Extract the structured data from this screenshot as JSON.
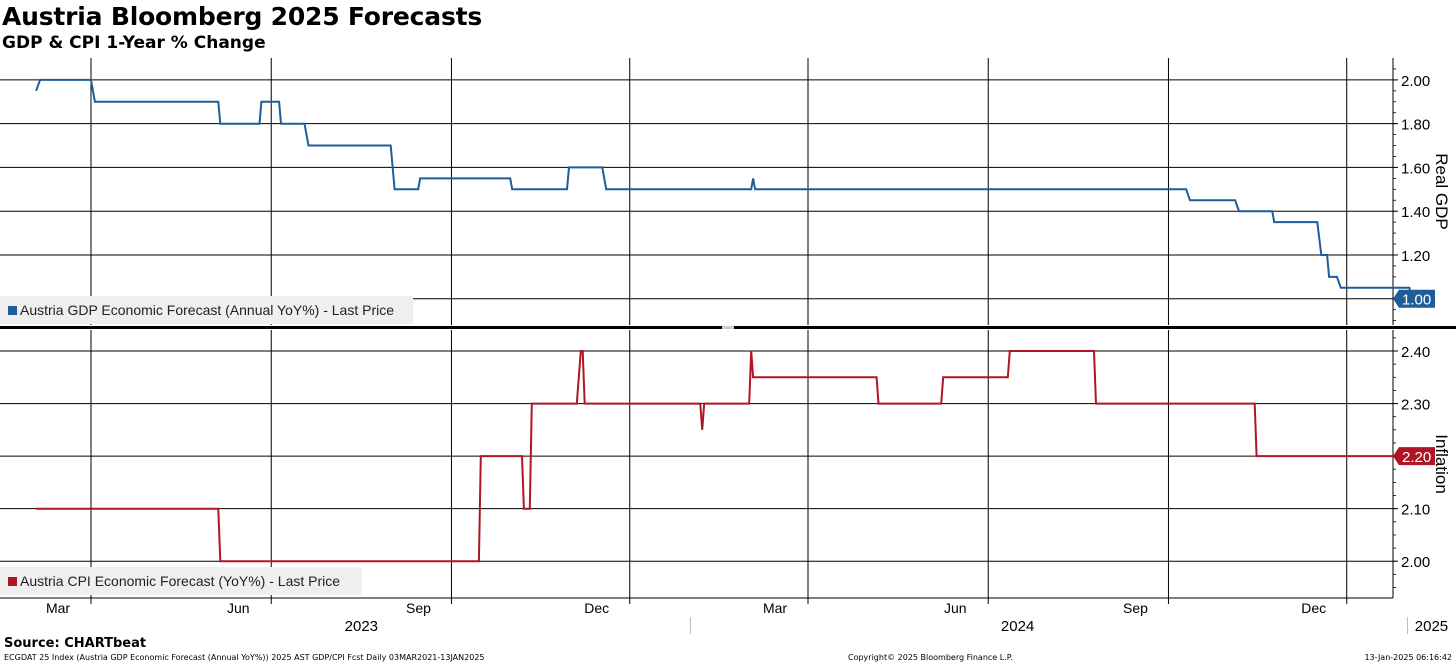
{
  "title": "Austria Bloomberg 2025 Forecasts",
  "subtitle": "GDP & CPI 1-Year % Change",
  "source": "Source: CHARTbeat",
  "footer": {
    "left": "ECGDAT 25 Index (Austria GDP Economic Forecast (Annual YoY%)) 2025 AST GDP/CPI Fcst  Daily 03MAR2021-13JAN2025",
    "center": "Copyright© 2025 Bloomberg Finance L.P.",
    "right": "13-Jan-2025 06:16:42"
  },
  "x_axis": {
    "month_ticks": [
      "Mar",
      "Jun",
      "Sep",
      "Dec",
      "Mar",
      "Jun",
      "Sep",
      "Dec"
    ],
    "years": [
      "2023",
      "2024",
      "2025"
    ]
  },
  "colors": {
    "gdp": "#1f5d99",
    "cpi": "#b01525",
    "grid": "#000000"
  },
  "chart_data": [
    {
      "type": "line",
      "name": "gdp-panel",
      "ylabel": "Real GDP",
      "ylim": [
        0.88,
        2.1
      ],
      "yticks": [
        2.0,
        1.8,
        1.6,
        1.4,
        1.2,
        1.0
      ],
      "ytick_labels": [
        "2.00",
        "1.80",
        "1.60",
        "1.40",
        "1.20"
      ],
      "legend": "Austria GDP Economic Forecast (Annual YoY%) - Last Price",
      "last_value": "1.00",
      "series": [
        {
          "name": "Austria GDP Economic Forecast (Annual YoY%) - Last Price",
          "points": [
            [
              "2023-02-01",
              1.95
            ],
            [
              "2023-02-03",
              2.0
            ],
            [
              "2023-03-01",
              2.0
            ],
            [
              "2023-03-03",
              1.9
            ],
            [
              "2023-05-05",
              1.9
            ],
            [
              "2023-05-06",
              1.8
            ],
            [
              "2023-05-26",
              1.8
            ],
            [
              "2023-05-27",
              1.9
            ],
            [
              "2023-06-05",
              1.9
            ],
            [
              "2023-06-06",
              1.8
            ],
            [
              "2023-06-18",
              1.8
            ],
            [
              "2023-06-20",
              1.7
            ],
            [
              "2023-08-01",
              1.7
            ],
            [
              "2023-08-03",
              1.5
            ],
            [
              "2023-08-15",
              1.5
            ],
            [
              "2023-08-16",
              1.55
            ],
            [
              "2023-10-01",
              1.55
            ],
            [
              "2023-10-02",
              1.5
            ],
            [
              "2023-10-30",
              1.5
            ],
            [
              "2023-10-31",
              1.6
            ],
            [
              "2023-11-17",
              1.6
            ],
            [
              "2023-11-19",
              1.5
            ],
            [
              "2024-02-01",
              1.5
            ],
            [
              "2024-02-02",
              1.55
            ],
            [
              "2024-02-03",
              1.5
            ],
            [
              "2024-09-10",
              1.5
            ],
            [
              "2024-09-12",
              1.45
            ],
            [
              "2024-10-05",
              1.45
            ],
            [
              "2024-10-07",
              1.4
            ],
            [
              "2024-10-24",
              1.4
            ],
            [
              "2024-10-25",
              1.35
            ],
            [
              "2024-11-16",
              1.35
            ],
            [
              "2024-11-18",
              1.2
            ],
            [
              "2024-11-21",
              1.2
            ],
            [
              "2024-11-22",
              1.1
            ],
            [
              "2024-11-26",
              1.1
            ],
            [
              "2024-11-28",
              1.05
            ],
            [
              "2025-01-02",
              1.05
            ],
            [
              "2025-01-03",
              1.0
            ],
            [
              "2025-01-13",
              1.0
            ]
          ]
        }
      ]
    },
    {
      "type": "line",
      "name": "cpi-panel",
      "ylabel": "Inflation",
      "ylim": [
        1.93,
        2.44
      ],
      "yticks": [
        2.4,
        2.3,
        2.2,
        2.1,
        2.0
      ],
      "ytick_labels": [
        "2.40",
        "2.30",
        "2.10",
        "2.00"
      ],
      "legend": "Austria CPI Economic Forecast (YoY%) - Last Price",
      "last_value": "2.20",
      "series": [
        {
          "name": "Austria CPI Economic Forecast (YoY%) - Last Price",
          "points": [
            [
              "2023-02-01",
              2.1
            ],
            [
              "2023-05-05",
              2.1
            ],
            [
              "2023-05-06",
              2.0
            ],
            [
              "2023-09-15",
              2.0
            ],
            [
              "2023-09-16",
              2.2
            ],
            [
              "2023-10-07",
              2.2
            ],
            [
              "2023-10-08",
              2.1
            ],
            [
              "2023-10-11",
              2.1
            ],
            [
              "2023-10-12",
              2.3
            ],
            [
              "2023-11-04",
              2.3
            ],
            [
              "2023-11-06",
              2.4
            ],
            [
              "2023-11-07",
              2.4
            ],
            [
              "2023-11-08",
              2.3
            ],
            [
              "2024-01-06",
              2.3
            ],
            [
              "2024-01-07",
              2.25
            ],
            [
              "2024-01-08",
              2.3
            ],
            [
              "2024-01-31",
              2.3
            ],
            [
              "2024-02-01",
              2.4
            ],
            [
              "2024-02-02",
              2.35
            ],
            [
              "2024-04-05",
              2.35
            ],
            [
              "2024-04-06",
              2.3
            ],
            [
              "2024-05-08",
              2.3
            ],
            [
              "2024-05-09",
              2.35
            ],
            [
              "2024-06-11",
              2.35
            ],
            [
              "2024-06-12",
              2.4
            ],
            [
              "2024-07-25",
              2.4
            ],
            [
              "2024-07-26",
              2.3
            ],
            [
              "2024-10-15",
              2.3
            ],
            [
              "2024-10-16",
              2.2
            ],
            [
              "2025-01-13",
              2.2
            ]
          ]
        }
      ]
    }
  ]
}
